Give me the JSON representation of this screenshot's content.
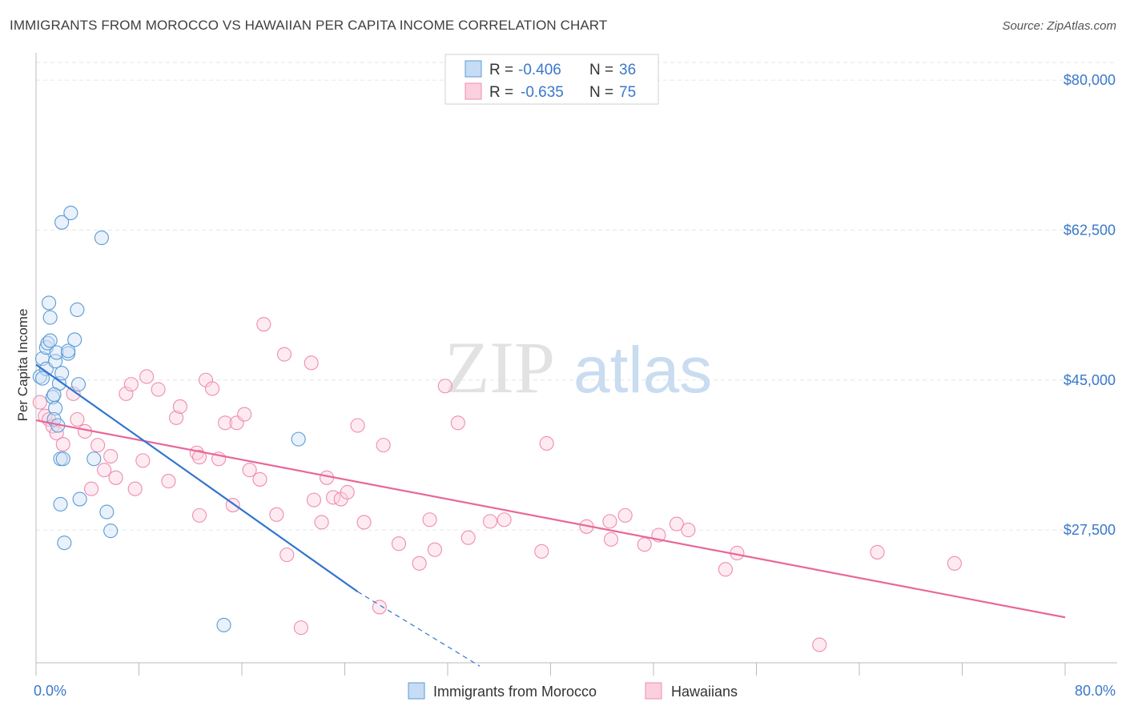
{
  "title": "IMMIGRANTS FROM MOROCCO VS HAWAIIAN PER CAPITA INCOME CORRELATION CHART",
  "source": "Source: ZipAtlas.com",
  "watermark": {
    "zip": "ZIP",
    "atlas": "atlas"
  },
  "colors": {
    "blue": "#5b9bd5",
    "blue_line": "#2f74d0",
    "pink": "#f08caf",
    "pink_line": "#e8679a",
    "label": "#3a78c9"
  },
  "legend": {
    "rows": [
      {
        "r_label": "R = ",
        "r_value": "-0.406",
        "n_label": "N = ",
        "n_value": "36"
      },
      {
        "r_label": "R = ",
        "r_value": "-0.635",
        "n_label": "N = ",
        "n_value": "75"
      }
    ]
  },
  "chart_data": {
    "type": "scatter",
    "title": "IMMIGRANTS FROM MOROCCO VS HAWAIIAN PER CAPITA INCOME CORRELATION CHART",
    "xlabel": "",
    "ylabel": "Per Capita Income",
    "xlim": [
      0,
      80
    ],
    "ylim": [
      12000,
      83000
    ],
    "x_tick_labels": [
      "0.0%",
      "80.0%"
    ],
    "y_ticks": [
      27500,
      45000,
      62500,
      80000
    ],
    "y_tick_labels": [
      "$27,500",
      "$45,000",
      "$62,500",
      "$80,000"
    ],
    "series": [
      {
        "name": "Immigrants from Morocco",
        "color": "#5b9bd5",
        "points": [
          [
            0.3,
            45400
          ],
          [
            0.5,
            47500
          ],
          [
            0.8,
            46300
          ],
          [
            0.8,
            48800
          ],
          [
            0.9,
            49300
          ],
          [
            1.1,
            49600
          ],
          [
            1.0,
            54000
          ],
          [
            1.1,
            52300
          ],
          [
            1.3,
            43000
          ],
          [
            1.5,
            41700
          ],
          [
            1.5,
            47200
          ],
          [
            1.6,
            48200
          ],
          [
            1.4,
            40400
          ],
          [
            1.7,
            39700
          ],
          [
            1.8,
            44600
          ],
          [
            1.9,
            35800
          ],
          [
            2.0,
            45800
          ],
          [
            2.0,
            63400
          ],
          [
            2.1,
            35800
          ],
          [
            2.2,
            26000
          ],
          [
            2.5,
            48100
          ],
          [
            2.5,
            48400
          ],
          [
            2.7,
            64500
          ],
          [
            3.0,
            49700
          ],
          [
            3.2,
            53200
          ],
          [
            3.3,
            44500
          ],
          [
            3.4,
            31100
          ],
          [
            4.5,
            35800
          ],
          [
            5.1,
            61600
          ],
          [
            5.5,
            29600
          ],
          [
            5.8,
            27400
          ],
          [
            1.9,
            30500
          ],
          [
            0.5,
            45200
          ],
          [
            14.6,
            16400
          ],
          [
            20.4,
            38100
          ],
          [
            1.4,
            43300
          ]
        ],
        "trend": {
          "x": [
            0,
            25
          ],
          "y": [
            46800,
            20300
          ],
          "dash_to": [
            34.5,
            11600
          ]
        }
      },
      {
        "name": "Hawaiians",
        "color": "#f08caf",
        "points": [
          [
            0.3,
            42400
          ],
          [
            0.7,
            40800
          ],
          [
            1.0,
            40400
          ],
          [
            1.3,
            39600
          ],
          [
            1.6,
            38800
          ],
          [
            2.1,
            37500
          ],
          [
            2.9,
            43400
          ],
          [
            3.2,
            40400
          ],
          [
            3.8,
            39000
          ],
          [
            4.3,
            32300
          ],
          [
            4.8,
            37400
          ],
          [
            5.3,
            34500
          ],
          [
            5.8,
            36100
          ],
          [
            6.2,
            33600
          ],
          [
            7.0,
            43400
          ],
          [
            7.4,
            44500
          ],
          [
            7.7,
            32300
          ],
          [
            8.3,
            35600
          ],
          [
            8.6,
            45400
          ],
          [
            9.5,
            43900
          ],
          [
            10.3,
            33200
          ],
          [
            10.9,
            40600
          ],
          [
            11.2,
            41900
          ],
          [
            12.5,
            36500
          ],
          [
            12.7,
            36000
          ],
          [
            12.7,
            29200
          ],
          [
            13.2,
            45000
          ],
          [
            13.7,
            44000
          ],
          [
            14.2,
            35800
          ],
          [
            14.7,
            40000
          ],
          [
            15.3,
            30400
          ],
          [
            15.6,
            40000
          ],
          [
            16.2,
            41000
          ],
          [
            16.6,
            34500
          ],
          [
            17.4,
            33400
          ],
          [
            17.7,
            51500
          ],
          [
            18.7,
            29300
          ],
          [
            19.3,
            48000
          ],
          [
            19.5,
            24600
          ],
          [
            20.6,
            16100
          ],
          [
            21.4,
            47000
          ],
          [
            21.6,
            31000
          ],
          [
            22.2,
            28400
          ],
          [
            22.6,
            33600
          ],
          [
            23.1,
            31300
          ],
          [
            23.7,
            31100
          ],
          [
            24.2,
            31900
          ],
          [
            25.5,
            28400
          ],
          [
            25.0,
            39700
          ],
          [
            27.0,
            37400
          ],
          [
            26.7,
            18500
          ],
          [
            28.2,
            25900
          ],
          [
            29.8,
            23600
          ],
          [
            30.6,
            28700
          ],
          [
            31.0,
            25200
          ],
          [
            31.8,
            44300
          ],
          [
            32.8,
            40000
          ],
          [
            33.6,
            26600
          ],
          [
            35.3,
            28500
          ],
          [
            36.4,
            28700
          ],
          [
            39.3,
            25000
          ],
          [
            39.7,
            37600
          ],
          [
            42.8,
            27900
          ],
          [
            44.6,
            28500
          ],
          [
            44.7,
            26400
          ],
          [
            45.8,
            29200
          ],
          [
            47.3,
            25800
          ],
          [
            48.4,
            26900
          ],
          [
            49.8,
            28200
          ],
          [
            50.7,
            27500
          ],
          [
            53.6,
            22900
          ],
          [
            54.5,
            24800
          ],
          [
            60.9,
            14100
          ],
          [
            65.4,
            24900
          ],
          [
            71.4,
            23600
          ]
        ],
        "trend": {
          "x": [
            0,
            80
          ],
          "y": [
            40300,
            17300
          ]
        }
      }
    ]
  },
  "bottom_legend": [
    {
      "label": "Immigrants from Morocco"
    },
    {
      "label": "Hawaiians"
    }
  ]
}
